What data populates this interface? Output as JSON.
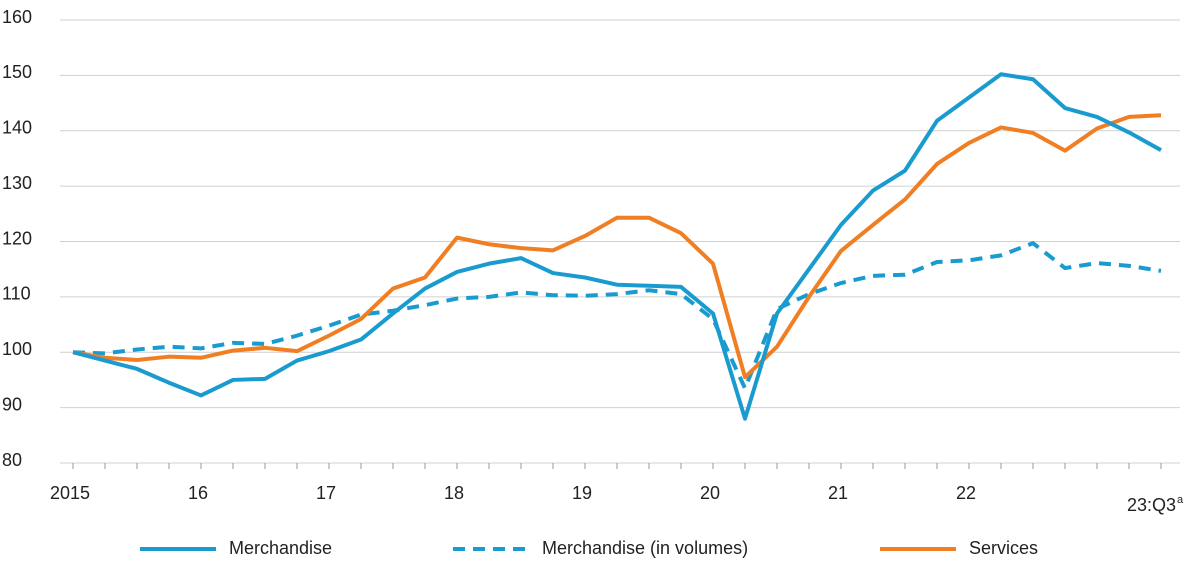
{
  "chart_data": {
    "type": "line",
    "categories": [
      "2015",
      null,
      null,
      null,
      "16",
      null,
      null,
      null,
      "17",
      null,
      null,
      null,
      "18",
      null,
      null,
      null,
      "19",
      null,
      null,
      null,
      "20",
      null,
      null,
      null,
      "21",
      null,
      null,
      null,
      "22",
      null,
      null,
      null,
      null,
      null,
      "23:Q3"
    ],
    "last_label_note": "a",
    "series": [
      {
        "name": "Merchandise",
        "color": "#1a9bd0",
        "dash": false,
        "values": [
          100,
          98.5,
          97,
          94.5,
          92.2,
          95,
          95.2,
          98.5,
          100.2,
          102.3,
          107,
          111.5,
          114.5,
          116,
          117,
          114.3,
          113.5,
          112.2,
          112,
          111.8,
          107,
          88,
          107,
          115,
          123,
          129.2,
          132.8,
          141.8,
          146,
          150.2,
          149.3,
          144.1,
          142.5,
          139.7,
          136.5
        ]
      },
      {
        "name": "Merchandise (in volumes)",
        "color": "#1a9bd0",
        "dash": true,
        "values": [
          100,
          99.8,
          100.5,
          101,
          100.7,
          101.7,
          101.5,
          103,
          104.8,
          106.8,
          107.5,
          108.5,
          109.7,
          110,
          110.8,
          110.3,
          110.2,
          110.5,
          111.2,
          110.5,
          106,
          93.5,
          107.8,
          110.5,
          112.5,
          113.8,
          114,
          116.3,
          116.6,
          117.5,
          119.7,
          115.2,
          116.1,
          115.6,
          114.7
        ]
      },
      {
        "name": "Services",
        "color": "#f07f24",
        "dash": false,
        "values": [
          100,
          99,
          98.6,
          99.2,
          99,
          100.3,
          100.8,
          100.2,
          103,
          106,
          111.5,
          113.5,
          120.7,
          119.5,
          118.8,
          118.4,
          121,
          124.3,
          124.3,
          121.5,
          116,
          95.5,
          101,
          110,
          118.3,
          123,
          127.6,
          134,
          137.8,
          140.6,
          139.6,
          136.4,
          140.4,
          142.5,
          142.8
        ]
      }
    ],
    "ylim": [
      80,
      160
    ],
    "yticks": [
      80,
      90,
      100,
      110,
      120,
      130,
      140,
      150,
      160
    ],
    "grid": true,
    "legend": "bottom"
  }
}
